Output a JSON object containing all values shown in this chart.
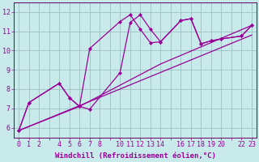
{
  "title": "",
  "xlabel": "Windchill (Refroidissement éolien,°C)",
  "ylabel": "",
  "bg_color": "#c8eaea",
  "grid_color": "#9dbfbf",
  "line_color": "#990099",
  "spine_color": "#660066",
  "xlim": [
    -0.5,
    23.5
  ],
  "ylim": [
    5.5,
    12.5
  ],
  "xtick_positions": [
    0,
    1,
    2,
    3,
    4,
    5,
    6,
    7,
    8,
    9,
    10,
    11,
    12,
    13,
    14,
    15,
    16,
    17,
    18,
    19,
    20,
    21,
    22,
    23
  ],
  "xtick_labels": [
    "0",
    "1",
    "2",
    "",
    "4",
    "5",
    "6",
    "7",
    "8",
    "",
    "10",
    "11",
    "12",
    "13",
    "14",
    "",
    "16",
    "17",
    "18",
    "19",
    "20",
    "",
    "22",
    "23"
  ],
  "yticks": [
    6,
    7,
    8,
    9,
    10,
    11,
    12
  ],
  "series": [
    {
      "x": [
        0,
        1,
        4,
        5,
        6,
        7,
        10,
        11,
        12,
        13,
        14,
        16,
        17,
        18,
        19,
        20,
        22,
        23
      ],
      "y": [
        5.85,
        7.3,
        8.3,
        7.55,
        7.1,
        10.1,
        11.5,
        11.85,
        11.1,
        10.4,
        10.45,
        11.55,
        11.65,
        10.35,
        10.5,
        10.6,
        10.75,
        11.3
      ]
    },
    {
      "x": [
        0,
        1,
        4,
        5,
        6,
        7,
        10,
        11,
        12,
        13,
        14,
        16,
        17,
        18,
        19,
        20,
        22,
        23
      ],
      "y": [
        5.85,
        7.3,
        8.3,
        7.55,
        7.1,
        6.95,
        8.85,
        11.45,
        11.85,
        11.1,
        10.45,
        11.55,
        11.65,
        10.35,
        10.5,
        10.6,
        10.75,
        11.3
      ]
    },
    {
      "x": [
        0,
        6,
        14,
        23
      ],
      "y": [
        5.85,
        7.1,
        9.3,
        11.3
      ]
    },
    {
      "x": [
        0,
        23
      ],
      "y": [
        5.85,
        10.8
      ]
    }
  ],
  "xlabel_fontsize": 6.5,
  "tick_fontsize": 6,
  "marker": "D",
  "markersize": 2,
  "linewidth": 0.9
}
